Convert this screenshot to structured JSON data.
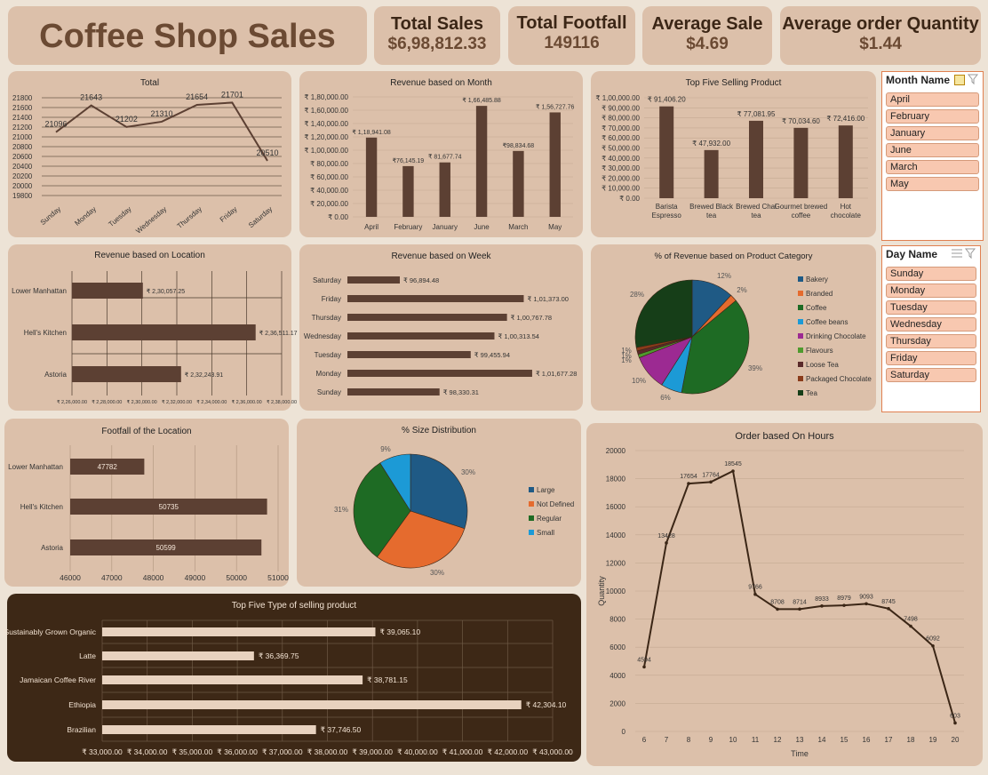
{
  "header": {
    "title": "Coffee Shop Sales",
    "kpis": [
      {
        "title": "Total Sales",
        "value": "$6,98,812.33"
      },
      {
        "title": "Total Footfall",
        "value": "149116"
      },
      {
        "title": "Average Sale",
        "value": "$4.69"
      },
      {
        "title": "Average order Quantity",
        "value": "$1.44"
      }
    ]
  },
  "colors": {
    "bar": "#5c4033",
    "card": "#dcc0aa",
    "page": "#ede3d6",
    "dark_card": "#3d2816",
    "light_bar": "#e8d2bf"
  },
  "slicers": {
    "month": {
      "title": "Month Name",
      "items": [
        "April",
        "February",
        "January",
        "June",
        "March",
        "May"
      ]
    },
    "day": {
      "title": "Day Name",
      "items": [
        "Sunday",
        "Monday",
        "Tuesday",
        "Wednesday",
        "Thursday",
        "Friday",
        "Saturday"
      ]
    }
  },
  "chart_data": [
    {
      "id": "total",
      "type": "line",
      "title": "Total",
      "categories": [
        "Sunday",
        "Monday",
        "Tuesday",
        "Wednesday",
        "Thursday",
        "Friday",
        "Saturday"
      ],
      "values": [
        21096,
        21643,
        21202,
        21310,
        21654,
        21701,
        20510
      ],
      "data_labels": [
        "21096",
        "21643",
        "21202",
        "21310",
        "21654",
        "21701",
        "20510"
      ],
      "ylim": [
        19800,
        21800
      ],
      "yticks": [
        "21800",
        "21600",
        "21400",
        "21200",
        "21000",
        "20800",
        "20600",
        "20400",
        "20200",
        "20000",
        "19800"
      ]
    },
    {
      "id": "month",
      "type": "bar",
      "title": "Revenue based on Month",
      "categories": [
        "April",
        "February",
        "January",
        "June",
        "March",
        "May"
      ],
      "values": [
        118941.08,
        76145.19,
        81677.74,
        166485.88,
        98834.68,
        156727.76
      ],
      "data_labels": [
        "₹ 1,18,941.08",
        "₹76,145.19",
        "₹ 81,677.74",
        "₹ 1,66,485.88",
        "₹98,834.68",
        "₹ 1,56,727.76"
      ],
      "ylim": [
        0,
        180000
      ],
      "yticks": [
        "₹ 1,80,000.00",
        "₹ 1,60,000.00",
        "₹ 1,40,000.00",
        "₹ 1,20,000.00",
        "₹ 1,00,000.00",
        "₹ 80,000.00",
        "₹ 60,000.00",
        "₹ 40,000.00",
        "₹ 20,000.00",
        "₹ 0.00"
      ]
    },
    {
      "id": "top5",
      "type": "bar",
      "title": "Top Five Selling Product",
      "categories": [
        "Barista Espresso",
        "Brewed Black tea",
        "Brewed Chai tea",
        "Gourmet brewed coffee",
        "Hot chocolate"
      ],
      "values": [
        91406.2,
        47932.0,
        77081.95,
        70034.6,
        72416.0
      ],
      "data_labels": [
        "₹ 91,406.20",
        "₹ 47,932.00",
        "₹ 77,081.95",
        "₹ 70,034.60",
        "₹ 72,416.00"
      ],
      "ylim": [
        0,
        100000
      ],
      "yticks": [
        "₹ 1,00,000.00",
        "₹ 90,000.00",
        "₹ 80,000.00",
        "₹ 70,000.00",
        "₹ 60,000.00",
        "₹ 50,000.00",
        "₹ 40,000.00",
        "₹ 30,000.00",
        "₹ 20,000.00",
        "₹ 10,000.00",
        "₹ 0.00"
      ]
    },
    {
      "id": "location",
      "type": "bar",
      "title": "Revenue based on Location",
      "categories": [
        "Lower Manhattan",
        "Hell's Kitchen",
        "Astoria"
      ],
      "values": [
        230057.25,
        236511.17,
        232243.91
      ],
      "data_labels": [
        "₹ 2,30,057.25",
        "₹ 2,36,511.17",
        "₹ 2,32,243.91"
      ],
      "xlim": [
        226000,
        238000
      ],
      "xticks": [
        "₹ 2,26,000.00",
        "₹ 2,28,000.00",
        "₹ 2,30,000.00",
        "₹ 2,32,000.00",
        "₹ 2,34,000.00",
        "₹ 2,36,000.00",
        "₹ 2,38,000.00"
      ]
    },
    {
      "id": "week",
      "type": "bar",
      "title": "Revenue based on Week",
      "categories": [
        "Saturday",
        "Friday",
        "Thursday",
        "Wednesday",
        "Tuesday",
        "Monday",
        "Sunday"
      ],
      "values": [
        96894.48,
        101373.0,
        100767.78,
        100313.54,
        99455.94,
        101677.28,
        98330.31
      ],
      "data_labels": [
        "₹ 96,894.48",
        "₹ 1,01,373.00",
        "₹ 1,00,767.78",
        "₹ 1,00,313.54",
        "₹ 99,455.94",
        "₹ 1,01,677.28",
        "₹ 98,330.31"
      ],
      "xlim": [
        95000,
        102000
      ]
    },
    {
      "id": "category",
      "type": "pie",
      "title": "% of Revenue based on Product Category",
      "labels": [
        "Bakery",
        "Branded",
        "Coffee",
        "Coffee beans",
        "Drinking Chocolate",
        "Flavours",
        "Loose Tea",
        "Packaged Chocolate",
        "Tea"
      ],
      "values": [
        12,
        2,
        39,
        6,
        10,
        1,
        1,
        1,
        28
      ],
      "data_labels": [
        "12%",
        "2%",
        "39%",
        "6%",
        "10%",
        "1%",
        "1%",
        "1%",
        "28%"
      ],
      "colors": [
        "#1f5a85",
        "#e56b2e",
        "#1e6b24",
        "#1c9ad6",
        "#9c2a92",
        "#4f9a2e",
        "#5a2a2a",
        "#8a3b1a",
        "#163e18"
      ]
    },
    {
      "id": "footfall",
      "type": "bar",
      "title": "Footfall of the Location",
      "categories": [
        "Lower Manhattan",
        "Hell's Kitchen",
        "Astoria"
      ],
      "values": [
        47782,
        50735,
        50599
      ],
      "data_labels": [
        "47782",
        "50735",
        "50599"
      ],
      "xlim": [
        46000,
        51000
      ],
      "xticks": [
        "46000",
        "47000",
        "48000",
        "49000",
        "50000",
        "51000"
      ]
    },
    {
      "id": "size",
      "type": "pie",
      "title": "% Size Distribution",
      "labels": [
        "Large",
        "Not Defined",
        "Regular",
        "Small"
      ],
      "values": [
        30,
        30,
        31,
        9
      ],
      "data_labels": [
        "30%",
        "30%",
        "31%",
        "9%"
      ],
      "colors": [
        "#1f5a85",
        "#e56b2e",
        "#1e6b24",
        "#1c9ad6"
      ]
    },
    {
      "id": "hours",
      "type": "line",
      "title": "Order based On Hours",
      "x": [
        6,
        7,
        8,
        9,
        10,
        11,
        12,
        13,
        14,
        15,
        16,
        17,
        18,
        19,
        20
      ],
      "values": [
        4594,
        13428,
        17654,
        17764,
        18545,
        9766,
        8708,
        8714,
        8933,
        8979,
        9093,
        8745,
        7498,
        6092,
        603
      ],
      "data_labels": [
        "4594",
        "13428",
        "17654",
        "17764",
        "18545",
        "9766",
        "8708",
        "8714",
        "8933",
        "8979",
        "9093",
        "8745",
        "7498",
        "6092",
        "603"
      ],
      "xlabel": "Time",
      "ylabel": "Quantity",
      "ylim": [
        0,
        20000
      ],
      "yticks": [
        "20000",
        "18000",
        "16000",
        "14000",
        "12000",
        "10000",
        "8000",
        "6000",
        "4000",
        "2000",
        "0"
      ]
    },
    {
      "id": "types",
      "type": "bar",
      "title": "Top Five Type of selling product",
      "categories": [
        "Sustainably Grown Organic",
        "Latte",
        "Jamaican Coffee River",
        "Ethiopia",
        "Brazilian"
      ],
      "values": [
        39065.1,
        36369.75,
        38781.15,
        42304.1,
        37746.5
      ],
      "data_labels": [
        "₹ 39,065.10",
        "₹ 36,369.75",
        "₹ 38,781.15",
        "₹ 42,304.10",
        "₹ 37,746.50"
      ],
      "xlim": [
        33000,
        43000
      ],
      "xticks": [
        "₹ 33,000.00",
        "₹ 34,000.00",
        "₹ 35,000.00",
        "₹ 36,000.00",
        "₹ 37,000.00",
        "₹ 38,000.00",
        "₹ 39,000.00",
        "₹ 40,000.00",
        "₹ 41,000.00",
        "₹ 42,000.00",
        "₹ 43,000.00"
      ]
    }
  ]
}
